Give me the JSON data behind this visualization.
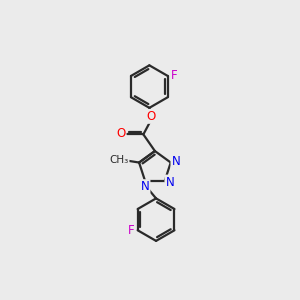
{
  "background_color": "#ebebeb",
  "bond_color": "#2a2a2a",
  "bond_width": 1.6,
  "atom_colors": {
    "F": "#cc00cc",
    "O": "#ff0000",
    "N": "#0000ee",
    "C": "#2a2a2a"
  },
  "font_size_atom": 8.5,
  "font_size_methyl": 8.0,
  "figsize": [
    3.0,
    3.0
  ],
  "dpi": 100,
  "xlim": [
    0,
    10
  ],
  "ylim": [
    0,
    10
  ]
}
